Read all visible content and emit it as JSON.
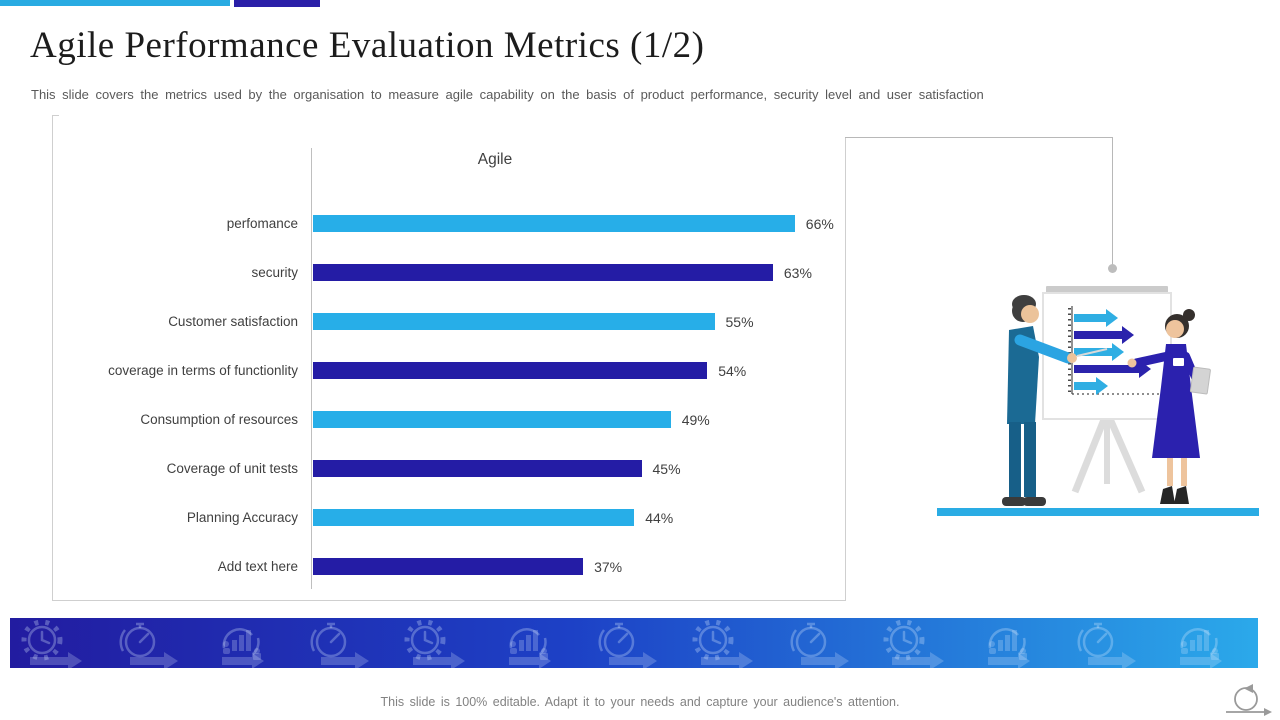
{
  "header": {
    "title": "Agile Performance Evaluation Metrics (1/2)",
    "subtitle": "This slide covers the metrics used by the organisation to measure agile capability on the basis of product performance, security level and user satisfaction"
  },
  "chart_data": {
    "type": "bar",
    "orientation": "horizontal",
    "title": "Agile",
    "categories": [
      "perfomance",
      "security",
      "Customer satisfaction",
      "coverage in terms of functionlity",
      "Consumption of resources",
      "Coverage of unit tests",
      "Planning Accuracy",
      "Add text here"
    ],
    "values": [
      66,
      63,
      55,
      54,
      49,
      45,
      44,
      37
    ],
    "value_suffix": "%",
    "xlim": [
      0,
      73
    ],
    "grid": false,
    "legend": false,
    "bar_colors": {
      "cyan": "#27AEE8",
      "navy": "#241CA5"
    }
  },
  "colors": {
    "accent_cyan": "#29ABE2",
    "accent_navy": "#2A1FA8",
    "band_gradient_left": "#221CA0",
    "band_gradient_right": "#2BA9EA",
    "frame_gray": "#CFCFCF",
    "floor_cyan": "#2AACE4"
  },
  "band": {
    "icons": [
      "gear-clock",
      "stopwatch",
      "chart-growth",
      "stopwatch",
      "gear-clock",
      "chart-growth",
      "stopwatch",
      "gear-clock",
      "stopwatch",
      "gear-clock",
      "chart-growth",
      "stopwatch",
      "chart-growth"
    ]
  },
  "footer": {
    "text": "This slide is 100% editable. Adapt it to your needs and capture your audience's attention."
  }
}
